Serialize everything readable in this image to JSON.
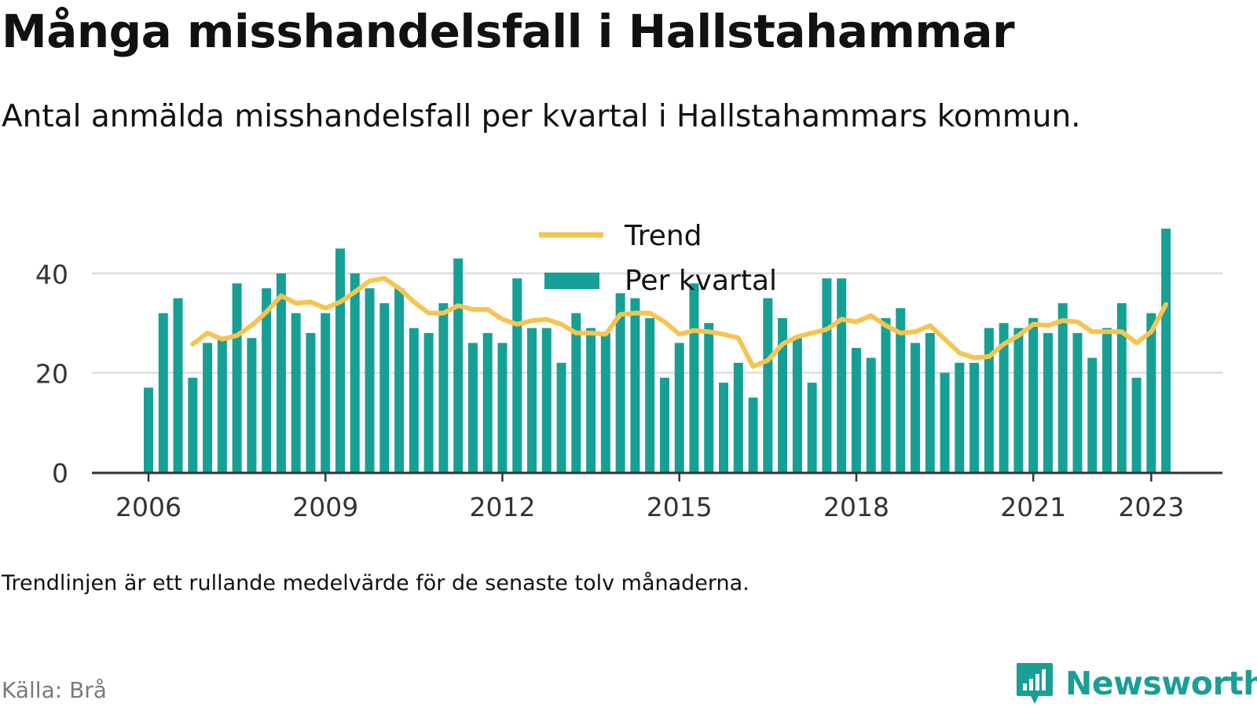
{
  "header": {
    "title": "Många misshandelsfall i Hallstahammar",
    "subtitle": "Antal anmälda misshandelsfall per kvartal i Hallstahammars kommun."
  },
  "footer": {
    "note": "Trendlinjen är ett rullande medelvärde för de senaste tolv månaderna.",
    "source": "Källa: Brå",
    "brand": "Newsworthy"
  },
  "colors": {
    "bar": "#16a095",
    "trend": "#f7c451",
    "grid": "#dddddd",
    "axis": "#333333",
    "brand": "#1a9e96"
  },
  "chart_data": {
    "type": "bar",
    "x_start": "2006-Q1",
    "x_ticks": [
      "2006",
      "2009",
      "2012",
      "2015",
      "2018",
      "2021",
      "2023"
    ],
    "y_ticks": [
      "0",
      "20",
      "40"
    ],
    "ylim": [
      0,
      50
    ],
    "grid": "horizontal",
    "legend_position": "top-center",
    "series": [
      {
        "name": "Per kvartal",
        "type": "bar",
        "values": [
          17,
          32,
          35,
          19,
          26,
          27,
          38,
          27,
          37,
          40,
          32,
          28,
          32,
          45,
          40,
          37,
          34,
          37,
          29,
          28,
          34,
          43,
          26,
          28,
          26,
          39,
          29,
          29,
          22,
          32,
          29,
          28,
          36,
          35,
          31,
          19,
          26,
          38,
          30,
          18,
          22,
          15,
          35,
          31,
          27,
          18,
          39,
          39,
          25,
          23,
          31,
          33,
          26,
          28,
          20,
          22,
          22,
          29,
          30,
          29,
          31,
          28,
          34,
          28,
          23,
          29,
          34,
          19,
          32,
          49
        ]
      },
      {
        "name": "Trend",
        "type": "line",
        "values": [
          null,
          null,
          null,
          25.75,
          28,
          26.75,
          27.5,
          29.5,
          32.25,
          35.5,
          34,
          34.25,
          33,
          34.25,
          36.25,
          38.5,
          39,
          37,
          34.25,
          32,
          32,
          33.5,
          32.75,
          32.75,
          30.75,
          29.75,
          30.5,
          30.75,
          29.75,
          28,
          28,
          27.75,
          31.75,
          32,
          32,
          30.25,
          27.75,
          28.5,
          28.25,
          27.75,
          27,
          21.25,
          22.5,
          25.75,
          27.25,
          28,
          28.75,
          30.75,
          30.25,
          31.5,
          29.5,
          28,
          28.25,
          29.5,
          26.75,
          24,
          23,
          23.25,
          25.75,
          27.5,
          29.75,
          29.5,
          30.5,
          30.25,
          28.25,
          28.25,
          28.25,
          26,
          28.25,
          33.75
        ]
      }
    ]
  }
}
